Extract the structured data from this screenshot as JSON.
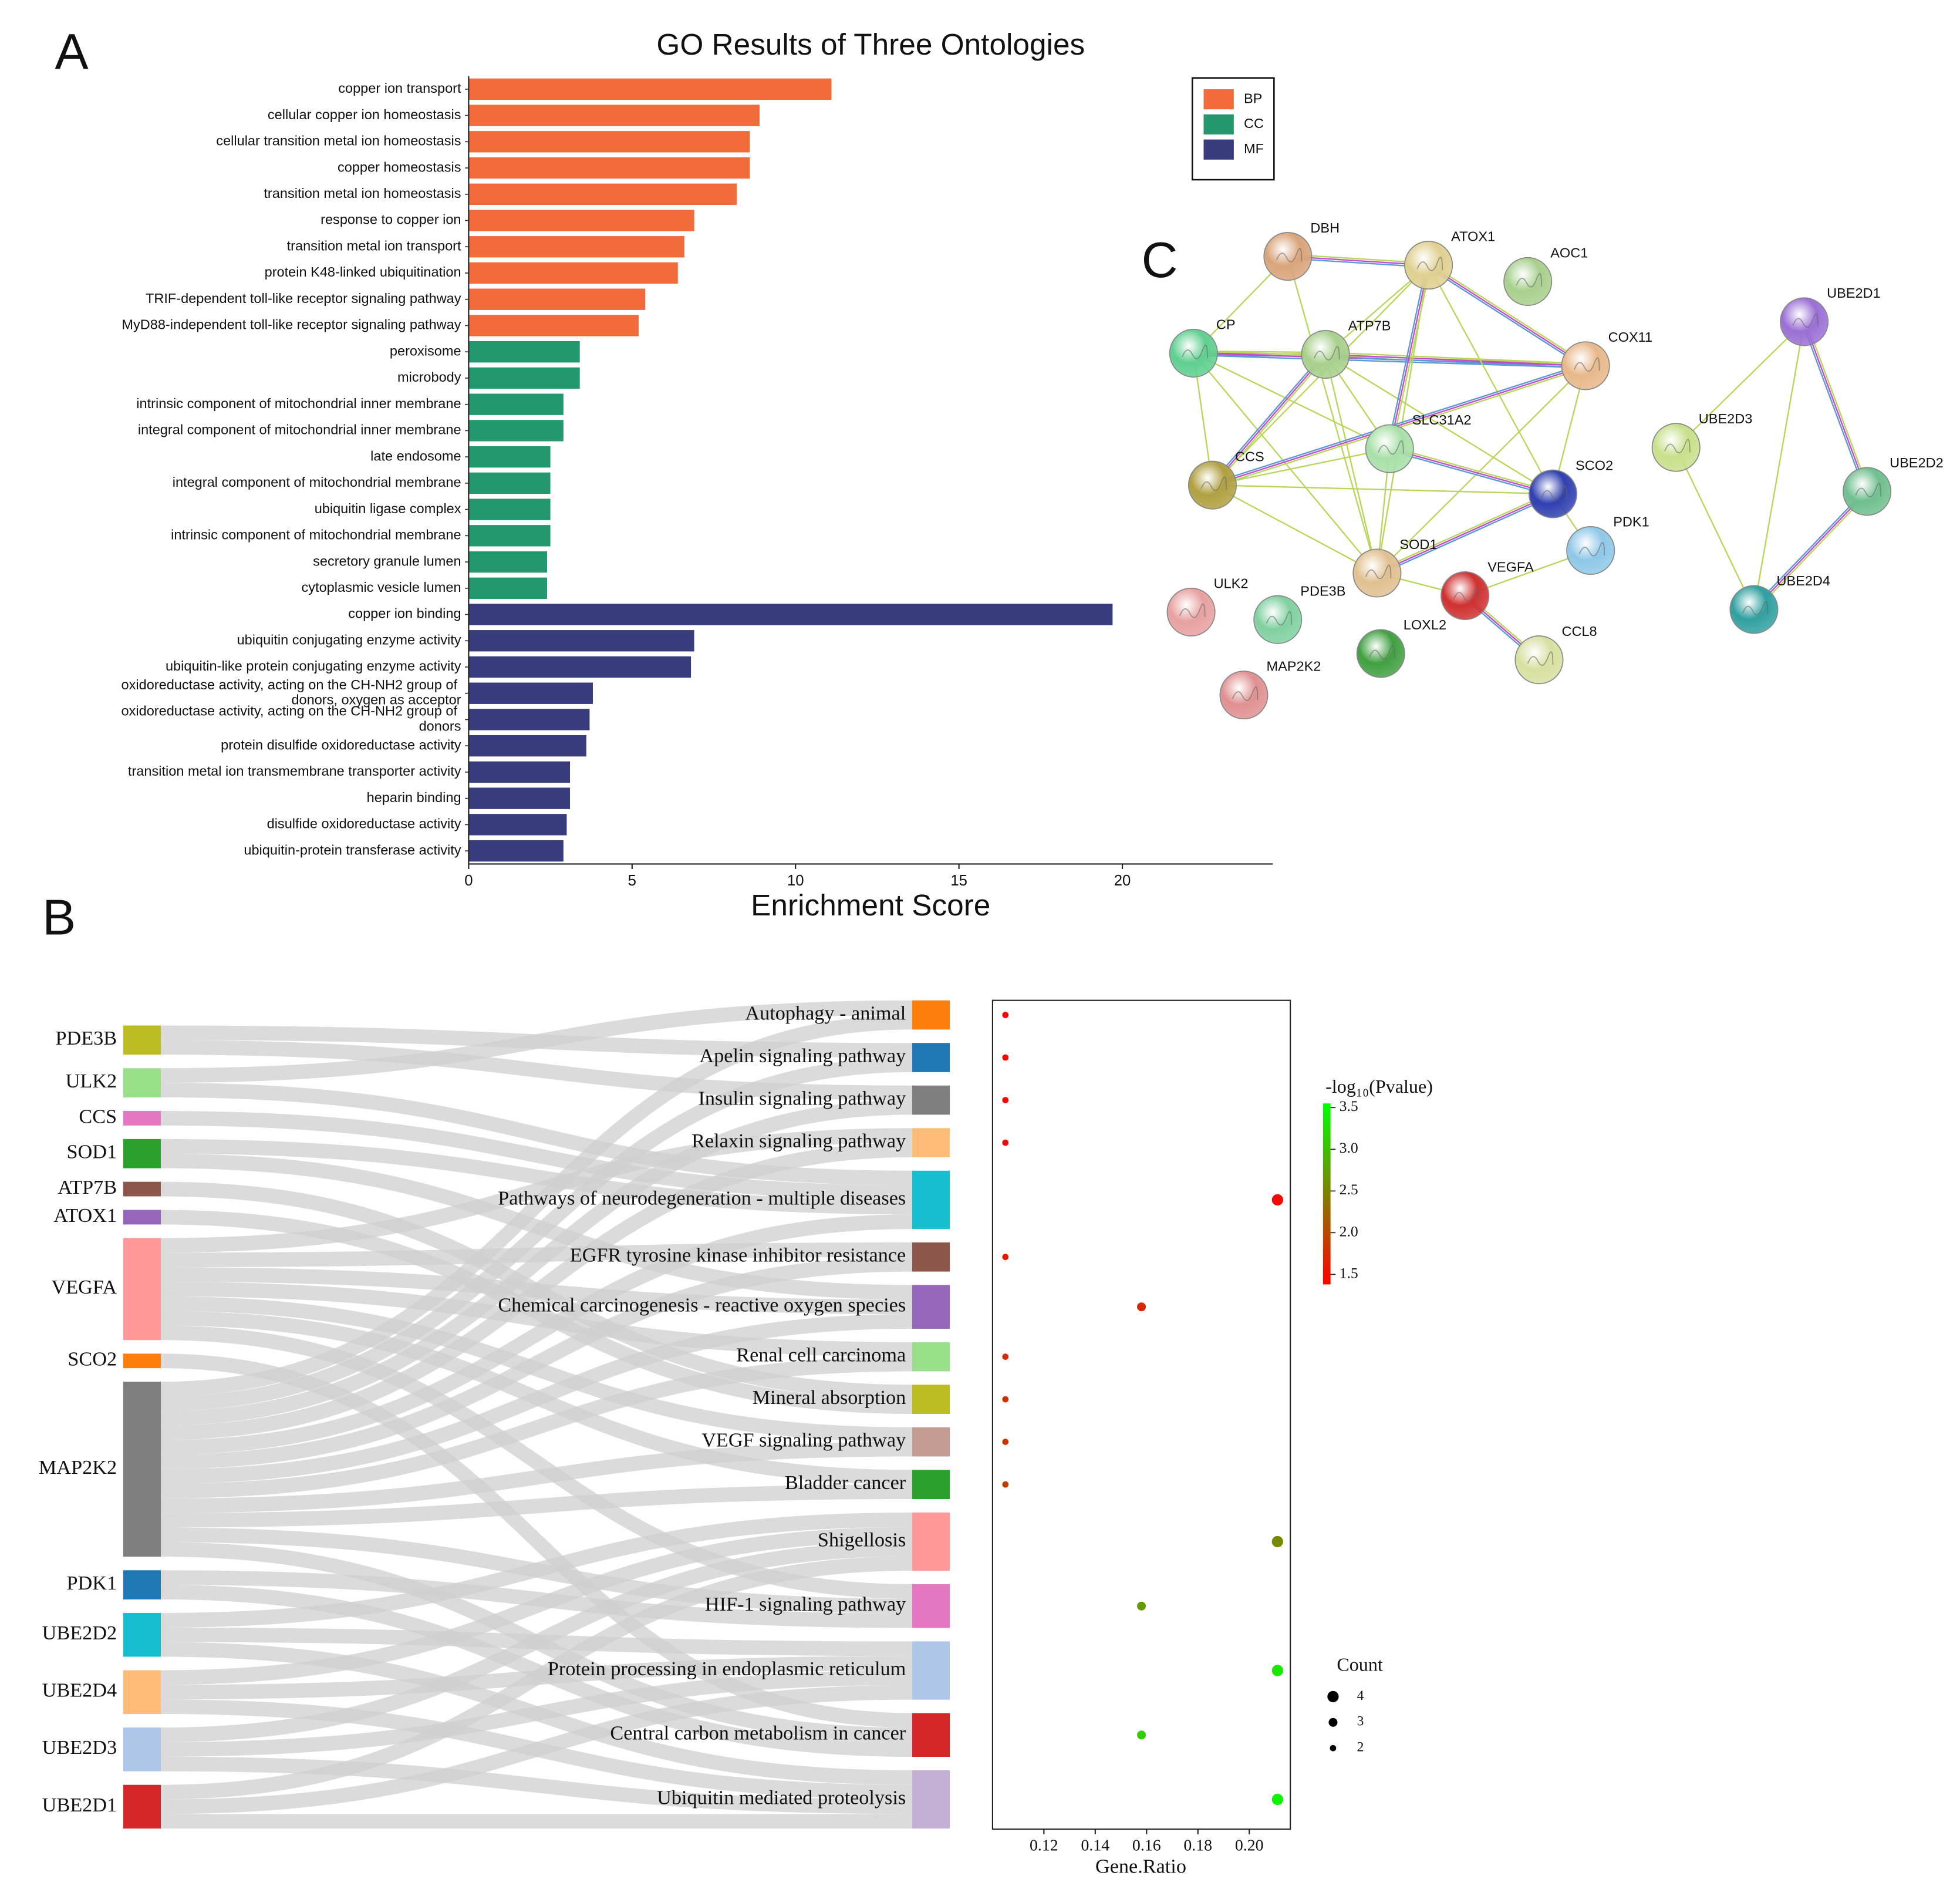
{
  "panel_labels": [
    "A",
    "B",
    "C"
  ],
  "chart_data": [
    {
      "type": "bar",
      "title": "GO Results of Three Ontologies",
      "x_label": "Enrichment Score",
      "categories": [
        "copper ion transport",
        "cellular copper ion homeostasis",
        "cellular transition metal ion homeostasis",
        "copper homeostasis",
        "transition metal ion homeostasis",
        "response to copper ion",
        "transition metal ion transport",
        "protein K48-linked ubiquitination",
        "TRIF-dependent toll-like receptor signaling pathway",
        "MyD88-independent toll-like receptor signaling pathway",
        "peroxisome",
        "microbody",
        "intrinsic component of mitochondrial inner membrane",
        "integral component of mitochondrial inner membrane",
        "late endosome",
        "integral component of mitochondrial membrane",
        "ubiquitin ligase complex",
        "intrinsic component of mitochondrial membrane",
        "secretory granule lumen",
        "cytoplasmic vesicle lumen",
        "copper ion binding",
        "ubiquitin conjugating enzyme activity",
        "ubiquitin-like protein conjugating enzyme activity",
        "oxidoreductase activity, acting on the CH-NH2 group of donors, oxygen as acceptor",
        "oxidoreductase activity, acting on the CH-NH2 group of donors",
        "protein disulfide oxidoreductase activity",
        "transition metal ion transmembrane transporter activity",
        "heparin binding",
        "disulfide oxidoreductase activity",
        "ubiquitin-protein transferase activity"
      ],
      "series": [
        {
          "name": "BP",
          "color": "#f26b3a",
          "values": [
            11.1,
            8.9,
            8.6,
            8.6,
            8.2,
            6.9,
            6.6,
            6.4,
            5.4,
            5.2,
            null,
            null,
            null,
            null,
            null,
            null,
            null,
            null,
            null,
            null,
            null,
            null,
            null,
            null,
            null,
            null,
            null,
            null,
            null,
            null
          ]
        },
        {
          "name": "CC",
          "color": "#23986d",
          "values": [
            null,
            null,
            null,
            null,
            null,
            null,
            null,
            null,
            null,
            null,
            3.4,
            3.4,
            2.9,
            2.9,
            2.5,
            2.5,
            2.5,
            2.5,
            2.4,
            2.4,
            null,
            null,
            null,
            null,
            null,
            null,
            null,
            null,
            null,
            null
          ]
        },
        {
          "name": "MF",
          "color": "#383c7c",
          "values": [
            null,
            null,
            null,
            null,
            null,
            null,
            null,
            null,
            null,
            null,
            null,
            null,
            null,
            null,
            null,
            null,
            null,
            null,
            null,
            null,
            19.7,
            6.9,
            6.8,
            3.8,
            3.7,
            3.6,
            3.1,
            3.1,
            3.0,
            2.9
          ]
        }
      ],
      "xlim": [
        0,
        24.6
      ],
      "xticks": [
        0,
        5,
        10,
        15,
        20
      ],
      "legend": "top-right"
    },
    {
      "type": "sankey",
      "left_nodes": [
        {
          "name": "PDE3B",
          "color": "#bcbd22"
        },
        {
          "name": "ULK2",
          "color": "#98df8a"
        },
        {
          "name": "CCS",
          "color": "#e377c2"
        },
        {
          "name": "SOD1",
          "color": "#2ca02c"
        },
        {
          "name": "ATP7B",
          "color": "#8c564b"
        },
        {
          "name": "ATOX1",
          "color": "#9467bd"
        },
        {
          "name": "VEGFA",
          "color": "#ff9896"
        },
        {
          "name": "SCO2",
          "color": "#ff7f0e"
        },
        {
          "name": "MAP2K2",
          "color": "#7f7f7f"
        },
        {
          "name": "PDK1",
          "color": "#1f77b4"
        },
        {
          "name": "UBE2D2",
          "color": "#17becf"
        },
        {
          "name": "UBE2D4",
          "color": "#ffbb78"
        },
        {
          "name": "UBE2D3",
          "color": "#aec7e8"
        },
        {
          "name": "UBE2D1",
          "color": "#d62728"
        }
      ],
      "right_nodes": [
        {
          "name": "Autophagy - animal",
          "color": "#ff7f0e"
        },
        {
          "name": "Apelin signaling pathway",
          "color": "#1f77b4"
        },
        {
          "name": "Insulin signaling pathway",
          "color": "#7f7f7f"
        },
        {
          "name": "Relaxin signaling pathway",
          "color": "#ffbb78"
        },
        {
          "name": "Pathways of neurodegeneration - multiple diseases",
          "color": "#17becf"
        },
        {
          "name": "EGFR tyrosine kinase inhibitor resistance",
          "color": "#8c564b"
        },
        {
          "name": "Chemical carcinogenesis - reactive oxygen species",
          "color": "#9467bd"
        },
        {
          "name": "Renal cell carcinoma",
          "color": "#98df8a"
        },
        {
          "name": "Mineral absorption",
          "color": "#bcbd22"
        },
        {
          "name": "VEGF signaling pathway",
          "color": "#c49c94"
        },
        {
          "name": "Bladder cancer",
          "color": "#2ca02c"
        },
        {
          "name": "Shigellosis",
          "color": "#ff9896"
        },
        {
          "name": "HIF-1 signaling pathway",
          "color": "#e377c2"
        },
        {
          "name": "Protein processing in endoplasmic reticulum",
          "color": "#aec7e8"
        },
        {
          "name": "Central carbon metabolism in cancer",
          "color": "#d62728"
        },
        {
          "name": "Ubiquitin mediated proteolysis",
          "color": "#c5b0d5"
        }
      ],
      "links": [
        {
          "source": "ULK2",
          "target": "Autophagy - animal",
          "value": 1
        },
        {
          "source": "MAP2K2",
          "target": "Autophagy - animal",
          "value": 1
        },
        {
          "source": "PDE3B",
          "target": "Apelin signaling pathway",
          "value": 1
        },
        {
          "source": "MAP2K2",
          "target": "Apelin signaling pathway",
          "value": 1
        },
        {
          "source": "PDE3B",
          "target": "Insulin signaling pathway",
          "value": 1
        },
        {
          "source": "MAP2K2",
          "target": "Insulin signaling pathway",
          "value": 1
        },
        {
          "source": "VEGFA",
          "target": "Relaxin signaling pathway",
          "value": 1
        },
        {
          "source": "MAP2K2",
          "target": "Relaxin signaling pathway",
          "value": 1
        },
        {
          "source": "ULK2",
          "target": "Pathways of neurodegeneration - multiple diseases",
          "value": 1
        },
        {
          "source": "CCS",
          "target": "Pathways of neurodegeneration - multiple diseases",
          "value": 1
        },
        {
          "source": "SOD1",
          "target": "Pathways of neurodegeneration - multiple diseases",
          "value": 1
        },
        {
          "source": "MAP2K2",
          "target": "Pathways of neurodegeneration - multiple diseases",
          "value": 1
        },
        {
          "source": "VEGFA",
          "target": "EGFR tyrosine kinase inhibitor resistance",
          "value": 1
        },
        {
          "source": "MAP2K2",
          "target": "EGFR tyrosine kinase inhibitor resistance",
          "value": 1
        },
        {
          "source": "SOD1",
          "target": "Chemical carcinogenesis - reactive oxygen species",
          "value": 1
        },
        {
          "source": "VEGFA",
          "target": "Chemical carcinogenesis - reactive oxygen species",
          "value": 1
        },
        {
          "source": "MAP2K2",
          "target": "Chemical carcinogenesis - reactive oxygen species",
          "value": 1
        },
        {
          "source": "VEGFA",
          "target": "Renal cell carcinoma",
          "value": 1
        },
        {
          "source": "MAP2K2",
          "target": "Renal cell carcinoma",
          "value": 1
        },
        {
          "source": "ATP7B",
          "target": "Mineral absorption",
          "value": 1
        },
        {
          "source": "ATOX1",
          "target": "Mineral absorption",
          "value": 1
        },
        {
          "source": "VEGFA",
          "target": "VEGF signaling pathway",
          "value": 1
        },
        {
          "source": "MAP2K2",
          "target": "VEGF signaling pathway",
          "value": 1
        },
        {
          "source": "VEGFA",
          "target": "Bladder cancer",
          "value": 1
        },
        {
          "source": "MAP2K2",
          "target": "Bladder cancer",
          "value": 1
        },
        {
          "source": "UBE2D2",
          "target": "Shigellosis",
          "value": 1
        },
        {
          "source": "UBE2D4",
          "target": "Shigellosis",
          "value": 1
        },
        {
          "source": "UBE2D3",
          "target": "Shigellosis",
          "value": 1
        },
        {
          "source": "UBE2D1",
          "target": "Shigellosis",
          "value": 1
        },
        {
          "source": "VEGFA",
          "target": "HIF-1 signaling pathway",
          "value": 1
        },
        {
          "source": "MAP2K2",
          "target": "HIF-1 signaling pathway",
          "value": 1
        },
        {
          "source": "PDK1",
          "target": "HIF-1 signaling pathway",
          "value": 1
        },
        {
          "source": "UBE2D2",
          "target": "Protein processing in endoplasmic reticulum",
          "value": 1
        },
        {
          "source": "UBE2D4",
          "target": "Protein processing in endoplasmic reticulum",
          "value": 1
        },
        {
          "source": "UBE2D3",
          "target": "Protein processing in endoplasmic reticulum",
          "value": 1
        },
        {
          "source": "UBE2D1",
          "target": "Protein processing in endoplasmic reticulum",
          "value": 1
        },
        {
          "source": "SCO2",
          "target": "Central carbon metabolism in cancer",
          "value": 1
        },
        {
          "source": "MAP2K2",
          "target": "Central carbon metabolism in cancer",
          "value": 1
        },
        {
          "source": "PDK1",
          "target": "Central carbon metabolism in cancer",
          "value": 1
        },
        {
          "source": "UBE2D2",
          "target": "Ubiquitin mediated proteolysis",
          "value": 1
        },
        {
          "source": "UBE2D4",
          "target": "Ubiquitin mediated proteolysis",
          "value": 1
        },
        {
          "source": "UBE2D3",
          "target": "Ubiquitin mediated proteolysis",
          "value": 1
        },
        {
          "source": "UBE2D1",
          "target": "Ubiquitin mediated proteolysis",
          "value": 1
        }
      ]
    },
    {
      "type": "dot",
      "x_label": "Gene.Ratio",
      "x": [
        0.105,
        0.105,
        0.105,
        0.105,
        0.211,
        0.105,
        0.158,
        0.105,
        0.105,
        0.105,
        0.105,
        0.211,
        0.158,
        0.211,
        0.158,
        0.211
      ],
      "count": [
        2,
        2,
        2,
        2,
        4,
        2,
        3,
        2,
        2,
        2,
        2,
        4,
        3,
        4,
        3,
        4
      ],
      "neg_log10_p": [
        1.39,
        1.4,
        1.41,
        1.42,
        1.45,
        1.62,
        1.7,
        1.78,
        1.8,
        1.85,
        1.9,
        2.55,
        2.7,
        3.35,
        3.15,
        3.45
      ],
      "xlim": [
        0.1,
        0.216
      ],
      "xticks": [
        0.12,
        0.14,
        0.16,
        0.18,
        {
          "value": 0.2,
          "label": "0.20"
        }
      ],
      "colorbar_title": "-log₁₀(Pvalue)",
      "colormap": [
        "#ff0000",
        "#00ff00"
      ],
      "clim": [
        1.38,
        3.55
      ],
      "colorbar_ticks": [
        1.5,
        {
          "value": 2,
          "label": "2.0"
        },
        2.5,
        {
          "value": 3,
          "label": "3.0"
        },
        3.5
      ],
      "size_legend_title": "Count",
      "size_legend_values": [
        4,
        3,
        2
      ]
    }
  ],
  "network": {
    "nodes": [
      {
        "label": "DBH",
        "color": "#d9a47a"
      },
      {
        "label": "ATOX1",
        "color": "#e0d090"
      },
      {
        "label": "AOC1",
        "color": "#a8d08d"
      },
      {
        "label": "CP",
        "color": "#5fcf8f"
      },
      {
        "label": "ATP7B",
        "color": "#a8d08d"
      },
      {
        "label": "COX11",
        "color": "#e8b88a"
      },
      {
        "label": "UBE2D1",
        "color": "#9b6fd6"
      },
      {
        "label": "SLC31A2",
        "color": "#a8e0a8"
      },
      {
        "label": "UBE2D3",
        "color": "#c8e08a"
      },
      {
        "label": "UBE2D2",
        "color": "#6fbf8f"
      },
      {
        "label": "CCS",
        "color": "#b0a040"
      },
      {
        "label": "SCO2",
        "color": "#3040b0"
      },
      {
        "label": "PDK1",
        "color": "#8ec8e8"
      },
      {
        "label": "SOD1",
        "color": "#e0c090"
      },
      {
        "label": "VEGFA",
        "color": "#d03030"
      },
      {
        "label": "UBE2D4",
        "color": "#30a0a0"
      },
      {
        "label": "ULK2",
        "color": "#e8a0a0"
      },
      {
        "label": "PDE3B",
        "color": "#80d0a0"
      },
      {
        "label": "LOXL2",
        "color": "#40a040"
      },
      {
        "label": "CCL8",
        "color": "#d8e0a0"
      },
      {
        "label": "MAP2K2",
        "color": "#e09090"
      }
    ],
    "edges": [
      [
        "DBH",
        "ATOX1"
      ],
      [
        "DBH",
        "CP"
      ],
      [
        "DBH",
        "SOD1"
      ],
      [
        "CP",
        "ATP7B"
      ],
      [
        "CP",
        "CCS"
      ],
      [
        "CP",
        "SOD1"
      ],
      [
        "CP",
        "COX11"
      ],
      [
        "CP",
        "SLC31A2"
      ],
      [
        "ATP7B",
        "ATOX1"
      ],
      [
        "ATP7B",
        "COX11"
      ],
      [
        "ATP7B",
        "SLC31A2"
      ],
      [
        "ATP7B",
        "SOD1"
      ],
      [
        "ATP7B",
        "CCS"
      ],
      [
        "ATP7B",
        "SCO2"
      ],
      [
        "ATOX1",
        "CCS"
      ],
      [
        "ATOX1",
        "SLC31A2"
      ],
      [
        "ATOX1",
        "SOD1"
      ],
      [
        "ATOX1",
        "SCO2"
      ],
      [
        "ATOX1",
        "COX11"
      ],
      [
        "COX11",
        "SCO2"
      ],
      [
        "COX11",
        "SOD1"
      ],
      [
        "COX11",
        "CCS"
      ],
      [
        "SLC31A2",
        "CCS"
      ],
      [
        "SLC31A2",
        "SOD1"
      ],
      [
        "SLC31A2",
        "SCO2"
      ],
      [
        "CCS",
        "SOD1"
      ],
      [
        "CCS",
        "SCO2"
      ],
      [
        "SOD1",
        "SCO2"
      ],
      [
        "SOD1",
        "VEGFA"
      ],
      [
        "VEGFA",
        "PDK1"
      ],
      [
        "VEGFA",
        "CCL8"
      ],
      [
        "SCO2",
        "PDK1"
      ],
      [
        "UBE2D1",
        "UBE2D3"
      ],
      [
        "UBE2D1",
        "UBE2D2"
      ],
      [
        "UBE2D1",
        "UBE2D4"
      ],
      [
        "UBE2D3",
        "UBE2D4"
      ],
      [
        "UBE2D2",
        "UBE2D4"
      ]
    ]
  }
}
